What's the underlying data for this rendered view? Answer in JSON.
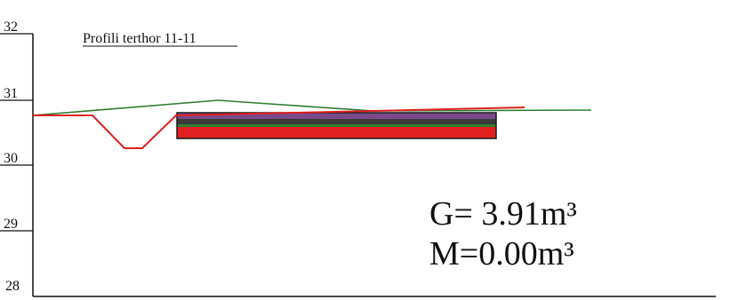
{
  "title": "Profili terthor 11-11",
  "y_ticks": [
    32,
    31,
    30,
    29,
    28
  ],
  "annotations": {
    "g_line": "G= 3.91m³",
    "m_line": "M=0.00m³"
  },
  "colors": {
    "terrain_line": "#2e7d2e",
    "design_line": "#e02020",
    "layer_top": "#7a4a8a",
    "layer_mid": "#3a3a3a",
    "layer_fill": "#e02020",
    "layer_border": "#1a1a1a",
    "axis": "#111111"
  }
}
